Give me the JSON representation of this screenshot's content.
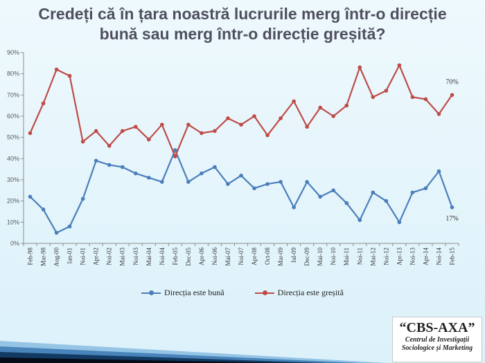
{
  "title": {
    "line1": "Credeți că în țara noastră lucrurile merg într-o direcție",
    "line2": "bună sau merg într-o direcție greșită?"
  },
  "logo": {
    "name": "“CBS-AXA”",
    "sub1": "Centrul de Investigații",
    "sub2": "Sociologice și Marketing"
  },
  "colors": {
    "good": "#4a7ebb",
    "bad": "#be4b48",
    "axis": "#8c8c8c",
    "text": "#595959",
    "grid": "#d9d9d9"
  },
  "chart_data": {
    "type": "line",
    "xlabel": "",
    "ylabel": "",
    "ylim": [
      0,
      90
    ],
    "y_ticks": [
      "0%",
      "10%",
      "20%",
      "30%",
      "40%",
      "50%",
      "60%",
      "70%",
      "80%",
      "90%"
    ],
    "grid": false,
    "legend_position": "bottom",
    "categories": [
      "Feb-98",
      "Mar-98",
      "Aug-00",
      "Ian-01",
      "Noi-01",
      "Apr-02",
      "Noi-02",
      "Mai-03",
      "Noi-03",
      "Mai-04",
      "Noi-04",
      "Feb-05",
      "Dec-05",
      "Apr-06",
      "Noi-06",
      "Mai-07",
      "Noi-07",
      "Apr-08",
      "Oct-08",
      "Mar-09",
      "Iul-09",
      "Dec-09",
      "Mai-10",
      "Noi-10",
      "Mai-11",
      "Noi-11",
      "Mai-12",
      "Noi-12",
      "Apr-13",
      "Noi-13",
      "Apr-14",
      "Noi-14",
      "Feb-15"
    ],
    "series": [
      {
        "name": "Direcția este bună",
        "color": "#4a7ebb",
        "values": [
          22,
          16,
          5,
          8,
          21,
          39,
          37,
          36,
          33,
          31,
          29,
          44,
          29,
          33,
          36,
          28,
          32,
          26,
          28,
          29,
          17,
          29,
          22,
          25,
          19,
          11,
          24,
          20,
          10,
          24,
          26,
          34,
          17
        ]
      },
      {
        "name": "Direcția este greșită",
        "color": "#be4b48",
        "values": [
          52,
          66,
          82,
          79,
          48,
          53,
          46,
          53,
          55,
          49,
          56,
          41,
          56,
          52,
          53,
          59,
          56,
          60,
          51,
          59,
          67,
          55,
          64,
          60,
          65,
          83,
          69,
          72,
          84,
          69,
          68,
          61,
          70
        ]
      }
    ],
    "annotations": [
      {
        "series": 1,
        "index": 32,
        "text": "70%"
      },
      {
        "series": 0,
        "index": 32,
        "text": "17%"
      }
    ]
  }
}
